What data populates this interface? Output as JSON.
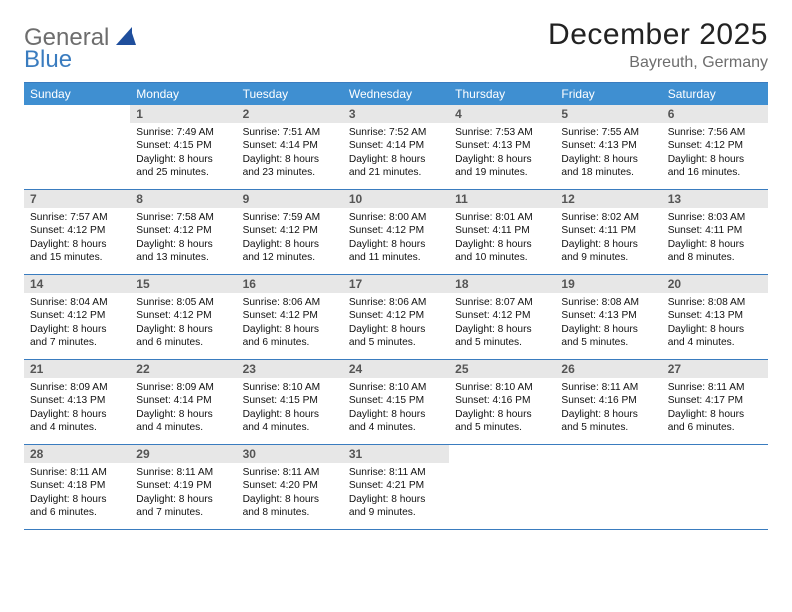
{
  "logo": {
    "word1": "General",
    "word2": "Blue"
  },
  "title": "December 2025",
  "location": "Bayreuth, Germany",
  "columns": [
    "Sunday",
    "Monday",
    "Tuesday",
    "Wednesday",
    "Thursday",
    "Friday",
    "Saturday"
  ],
  "colors": {
    "accent": "#3f8fd1",
    "border": "#3a7cbf",
    "grayBg": "#e7e7e7"
  },
  "weeks": [
    [
      {
        "n": "",
        "sr": "",
        "ss": "",
        "dl": ""
      },
      {
        "n": "1",
        "sr": "Sunrise: 7:49 AM",
        "ss": "Sunset: 4:15 PM",
        "dl": "Daylight: 8 hours and 25 minutes."
      },
      {
        "n": "2",
        "sr": "Sunrise: 7:51 AM",
        "ss": "Sunset: 4:14 PM",
        "dl": "Daylight: 8 hours and 23 minutes."
      },
      {
        "n": "3",
        "sr": "Sunrise: 7:52 AM",
        "ss": "Sunset: 4:14 PM",
        "dl": "Daylight: 8 hours and 21 minutes."
      },
      {
        "n": "4",
        "sr": "Sunrise: 7:53 AM",
        "ss": "Sunset: 4:13 PM",
        "dl": "Daylight: 8 hours and 19 minutes."
      },
      {
        "n": "5",
        "sr": "Sunrise: 7:55 AM",
        "ss": "Sunset: 4:13 PM",
        "dl": "Daylight: 8 hours and 18 minutes."
      },
      {
        "n": "6",
        "sr": "Sunrise: 7:56 AM",
        "ss": "Sunset: 4:12 PM",
        "dl": "Daylight: 8 hours and 16 minutes."
      }
    ],
    [
      {
        "n": "7",
        "sr": "Sunrise: 7:57 AM",
        "ss": "Sunset: 4:12 PM",
        "dl": "Daylight: 8 hours and 15 minutes."
      },
      {
        "n": "8",
        "sr": "Sunrise: 7:58 AM",
        "ss": "Sunset: 4:12 PM",
        "dl": "Daylight: 8 hours and 13 minutes."
      },
      {
        "n": "9",
        "sr": "Sunrise: 7:59 AM",
        "ss": "Sunset: 4:12 PM",
        "dl": "Daylight: 8 hours and 12 minutes."
      },
      {
        "n": "10",
        "sr": "Sunrise: 8:00 AM",
        "ss": "Sunset: 4:12 PM",
        "dl": "Daylight: 8 hours and 11 minutes."
      },
      {
        "n": "11",
        "sr": "Sunrise: 8:01 AM",
        "ss": "Sunset: 4:11 PM",
        "dl": "Daylight: 8 hours and 10 minutes."
      },
      {
        "n": "12",
        "sr": "Sunrise: 8:02 AM",
        "ss": "Sunset: 4:11 PM",
        "dl": "Daylight: 8 hours and 9 minutes."
      },
      {
        "n": "13",
        "sr": "Sunrise: 8:03 AM",
        "ss": "Sunset: 4:11 PM",
        "dl": "Daylight: 8 hours and 8 minutes."
      }
    ],
    [
      {
        "n": "14",
        "sr": "Sunrise: 8:04 AM",
        "ss": "Sunset: 4:12 PM",
        "dl": "Daylight: 8 hours and 7 minutes."
      },
      {
        "n": "15",
        "sr": "Sunrise: 8:05 AM",
        "ss": "Sunset: 4:12 PM",
        "dl": "Daylight: 8 hours and 6 minutes."
      },
      {
        "n": "16",
        "sr": "Sunrise: 8:06 AM",
        "ss": "Sunset: 4:12 PM",
        "dl": "Daylight: 8 hours and 6 minutes."
      },
      {
        "n": "17",
        "sr": "Sunrise: 8:06 AM",
        "ss": "Sunset: 4:12 PM",
        "dl": "Daylight: 8 hours and 5 minutes."
      },
      {
        "n": "18",
        "sr": "Sunrise: 8:07 AM",
        "ss": "Sunset: 4:12 PM",
        "dl": "Daylight: 8 hours and 5 minutes."
      },
      {
        "n": "19",
        "sr": "Sunrise: 8:08 AM",
        "ss": "Sunset: 4:13 PM",
        "dl": "Daylight: 8 hours and 5 minutes."
      },
      {
        "n": "20",
        "sr": "Sunrise: 8:08 AM",
        "ss": "Sunset: 4:13 PM",
        "dl": "Daylight: 8 hours and 4 minutes."
      }
    ],
    [
      {
        "n": "21",
        "sr": "Sunrise: 8:09 AM",
        "ss": "Sunset: 4:13 PM",
        "dl": "Daylight: 8 hours and 4 minutes."
      },
      {
        "n": "22",
        "sr": "Sunrise: 8:09 AM",
        "ss": "Sunset: 4:14 PM",
        "dl": "Daylight: 8 hours and 4 minutes."
      },
      {
        "n": "23",
        "sr": "Sunrise: 8:10 AM",
        "ss": "Sunset: 4:15 PM",
        "dl": "Daylight: 8 hours and 4 minutes."
      },
      {
        "n": "24",
        "sr": "Sunrise: 8:10 AM",
        "ss": "Sunset: 4:15 PM",
        "dl": "Daylight: 8 hours and 4 minutes."
      },
      {
        "n": "25",
        "sr": "Sunrise: 8:10 AM",
        "ss": "Sunset: 4:16 PM",
        "dl": "Daylight: 8 hours and 5 minutes."
      },
      {
        "n": "26",
        "sr": "Sunrise: 8:11 AM",
        "ss": "Sunset: 4:16 PM",
        "dl": "Daylight: 8 hours and 5 minutes."
      },
      {
        "n": "27",
        "sr": "Sunrise: 8:11 AM",
        "ss": "Sunset: 4:17 PM",
        "dl": "Daylight: 8 hours and 6 minutes."
      }
    ],
    [
      {
        "n": "28",
        "sr": "Sunrise: 8:11 AM",
        "ss": "Sunset: 4:18 PM",
        "dl": "Daylight: 8 hours and 6 minutes."
      },
      {
        "n": "29",
        "sr": "Sunrise: 8:11 AM",
        "ss": "Sunset: 4:19 PM",
        "dl": "Daylight: 8 hours and 7 minutes."
      },
      {
        "n": "30",
        "sr": "Sunrise: 8:11 AM",
        "ss": "Sunset: 4:20 PM",
        "dl": "Daylight: 8 hours and 8 minutes."
      },
      {
        "n": "31",
        "sr": "Sunrise: 8:11 AM",
        "ss": "Sunset: 4:21 PM",
        "dl": "Daylight: 8 hours and 9 minutes."
      },
      {
        "n": "",
        "sr": "",
        "ss": "",
        "dl": ""
      },
      {
        "n": "",
        "sr": "",
        "ss": "",
        "dl": ""
      },
      {
        "n": "",
        "sr": "",
        "ss": "",
        "dl": ""
      }
    ]
  ]
}
